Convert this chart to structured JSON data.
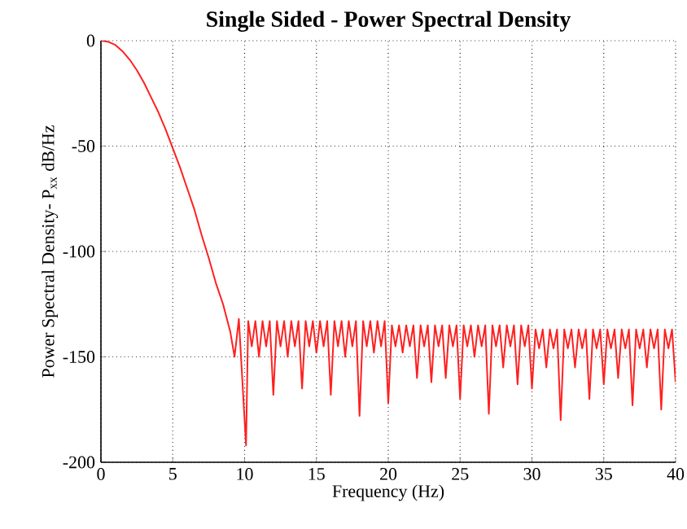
{
  "chart_data": {
    "type": "line",
    "title": "Single Sided - Power Spectral Density",
    "xlabel": "Frequency (Hz)",
    "ylabel": "Power Spectral Density- P$_{xx}$  dB/Hz",
    "xlim": [
      0,
      40
    ],
    "ylim": [
      -200,
      0
    ],
    "xticks": [
      0,
      5,
      10,
      15,
      20,
      25,
      30,
      35,
      40
    ],
    "yticks": [
      -200,
      -150,
      -100,
      -50,
      0
    ],
    "grid": true,
    "line_style": "solid",
    "marker": "none",
    "series": [
      {
        "color": "#ff2020",
        "x": [
          0,
          0.5,
          1,
          1.5,
          2,
          2.5,
          3,
          3.5,
          4,
          4.5,
          5,
          5.5,
          6,
          6.5,
          7,
          7.5,
          8,
          8.5,
          9,
          9.3,
          9.6,
          10.1,
          10.25,
          10.5,
          10.75,
          11,
          11.25,
          11.5,
          11.75,
          12,
          12.25,
          12.5,
          12.75,
          13,
          13.25,
          13.5,
          13.75,
          14,
          14.25,
          14.5,
          14.75,
          15,
          15.25,
          15.5,
          15.75,
          16,
          16.25,
          16.5,
          16.75,
          17,
          17.25,
          17.5,
          17.75,
          18,
          18.25,
          18.5,
          18.75,
          19,
          19.25,
          19.5,
          19.75,
          20,
          20.25,
          20.5,
          20.75,
          21,
          21.25,
          21.5,
          21.75,
          22,
          22.25,
          22.5,
          22.75,
          23,
          23.25,
          23.5,
          23.75,
          24,
          24.25,
          24.5,
          24.75,
          25,
          25.25,
          25.5,
          25.75,
          26,
          26.25,
          26.5,
          26.75,
          27,
          27.25,
          27.5,
          27.75,
          28,
          28.25,
          28.5,
          28.75,
          29,
          29.25,
          29.5,
          29.75,
          30,
          30.25,
          30.5,
          30.75,
          31,
          31.25,
          31.5,
          31.75,
          32,
          32.25,
          32.5,
          32.75,
          33,
          33.25,
          33.5,
          33.75,
          34,
          34.25,
          34.5,
          34.75,
          35,
          35.25,
          35.5,
          35.75,
          36,
          36.25,
          36.5,
          36.75,
          37,
          37.25,
          37.5,
          37.75,
          38,
          38.25,
          38.5,
          38.75,
          39,
          39.25,
          39.5,
          39.75,
          40
        ],
        "values": [
          0,
          -0.5,
          -2,
          -5,
          -9,
          -14,
          -20,
          -27,
          -34,
          -42,
          -51,
          -60,
          -70,
          -80,
          -92,
          -103,
          -115,
          -125,
          -138,
          -150,
          -132,
          -192,
          -133,
          -145,
          -133,
          -150,
          -133,
          -145,
          -133,
          -168,
          -133,
          -145,
          -133,
          -150,
          -133,
          -145,
          -133,
          -165,
          -133,
          -145,
          -133,
          -148,
          -133,
          -145,
          -133,
          -168,
          -133,
          -145,
          -133,
          -150,
          -133,
          -145,
          -133,
          -178,
          -133,
          -145,
          -133,
          -148,
          -133,
          -145,
          -133,
          -172,
          -135,
          -145,
          -135,
          -148,
          -135,
          -145,
          -135,
          -160,
          -135,
          -145,
          -135,
          -162,
          -135,
          -145,
          -135,
          -160,
          -135,
          -145,
          -135,
          -170,
          -135,
          -145,
          -135,
          -150,
          -135,
          -145,
          -135,
          -177,
          -135,
          -145,
          -135,
          -155,
          -135,
          -145,
          -135,
          -163,
          -135,
          -145,
          -135,
          -165,
          -137,
          -146,
          -137,
          -155,
          -137,
          -146,
          -137,
          -180,
          -137,
          -146,
          -137,
          -155,
          -137,
          -146,
          -137,
          -170,
          -137,
          -146,
          -137,
          -163,
          -137,
          -146,
          -137,
          -160,
          -137,
          -146,
          -137,
          -173,
          -137,
          -146,
          -137,
          -155,
          -137,
          -146,
          -137,
          -175,
          -137,
          -146,
          -137,
          -162
        ]
      }
    ]
  }
}
